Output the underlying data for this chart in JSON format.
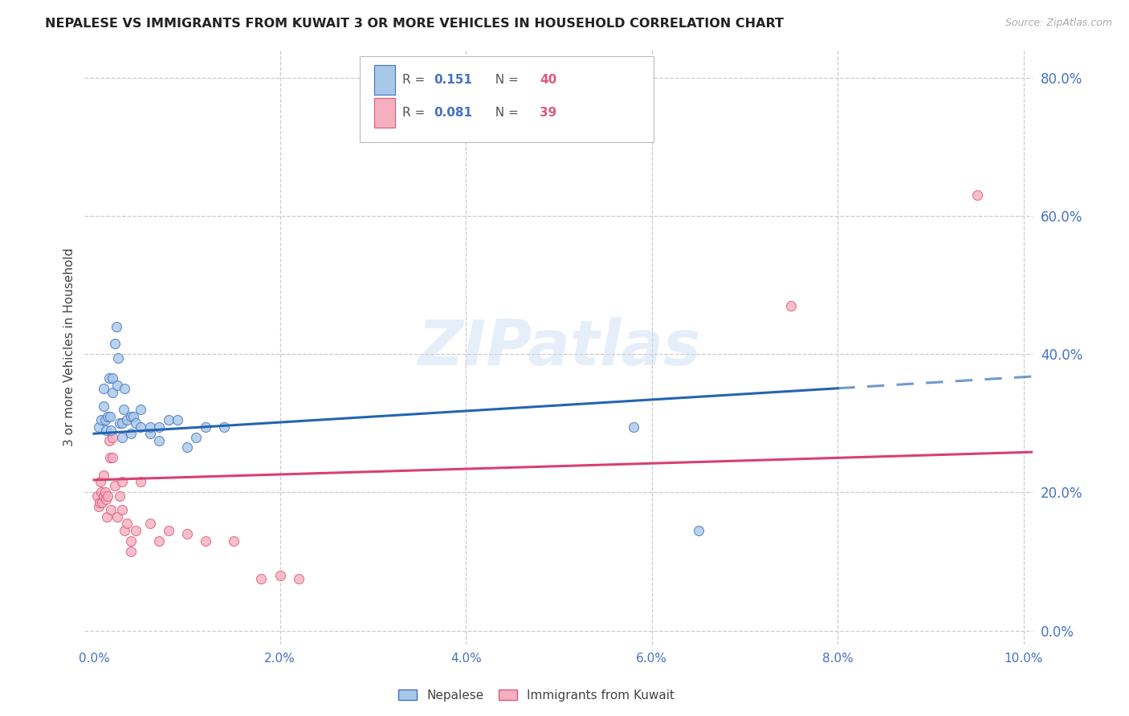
{
  "title": "NEPALESE VS IMMIGRANTS FROM KUWAIT 3 OR MORE VEHICLES IN HOUSEHOLD CORRELATION CHART",
  "source": "Source: ZipAtlas.com",
  "ylabel": "3 or more Vehicles in Household",
  "xlim": [
    -0.001,
    0.101
  ],
  "ylim": [
    -0.02,
    0.84
  ],
  "xtick_vals": [
    0.0,
    0.02,
    0.04,
    0.06,
    0.08,
    0.1
  ],
  "ytick_right_vals": [
    0.0,
    0.2,
    0.4,
    0.6,
    0.8
  ],
  "blue_face": "#a8c8e8",
  "blue_edge": "#4472c4",
  "pink_face": "#f4b0c0",
  "pink_edge": "#e05878",
  "line_blue_color": "#2464b4",
  "line_pink_color": "#d84070",
  "right_axis_color": "#4472c4",
  "grid_color": "#cccccc",
  "marker_size": 75,
  "watermark": "ZIPatlas",
  "R1": "0.151",
  "N1": "40",
  "R2": "0.081",
  "N2": "39",
  "nep_x": [
    0.0005,
    0.0008,
    0.001,
    0.001,
    0.0012,
    0.0013,
    0.0015,
    0.0016,
    0.0017,
    0.0018,
    0.002,
    0.002,
    0.0022,
    0.0024,
    0.0025,
    0.0026,
    0.0028,
    0.003,
    0.003,
    0.0032,
    0.0033,
    0.0035,
    0.004,
    0.004,
    0.0042,
    0.0045,
    0.005,
    0.005,
    0.006,
    0.006,
    0.007,
    0.007,
    0.008,
    0.009,
    0.01,
    0.011,
    0.012,
    0.014,
    0.058,
    0.065
  ],
  "nep_y": [
    0.295,
    0.305,
    0.325,
    0.35,
    0.305,
    0.29,
    0.31,
    0.365,
    0.31,
    0.29,
    0.345,
    0.365,
    0.415,
    0.44,
    0.355,
    0.395,
    0.3,
    0.28,
    0.3,
    0.32,
    0.35,
    0.305,
    0.285,
    0.31,
    0.31,
    0.3,
    0.295,
    0.32,
    0.285,
    0.295,
    0.275,
    0.295,
    0.305,
    0.305,
    0.265,
    0.28,
    0.295,
    0.295,
    0.295,
    0.145
  ],
  "kuw_x": [
    0.0003,
    0.0005,
    0.0006,
    0.0007,
    0.0008,
    0.0009,
    0.001,
    0.001,
    0.0012,
    0.0013,
    0.0014,
    0.0015,
    0.0016,
    0.0017,
    0.0018,
    0.002,
    0.002,
    0.0022,
    0.0025,
    0.0028,
    0.003,
    0.003,
    0.0033,
    0.0035,
    0.004,
    0.004,
    0.0045,
    0.005,
    0.006,
    0.007,
    0.008,
    0.01,
    0.012,
    0.015,
    0.018,
    0.02,
    0.022,
    0.075,
    0.095
  ],
  "kuw_y": [
    0.195,
    0.18,
    0.185,
    0.215,
    0.2,
    0.185,
    0.225,
    0.195,
    0.2,
    0.19,
    0.165,
    0.195,
    0.275,
    0.25,
    0.175,
    0.28,
    0.25,
    0.21,
    0.165,
    0.195,
    0.215,
    0.175,
    0.145,
    0.155,
    0.13,
    0.115,
    0.145,
    0.215,
    0.155,
    0.13,
    0.145,
    0.14,
    0.13,
    0.13,
    0.075,
    0.08,
    0.075,
    0.47,
    0.63
  ],
  "background_color": "#ffffff"
}
